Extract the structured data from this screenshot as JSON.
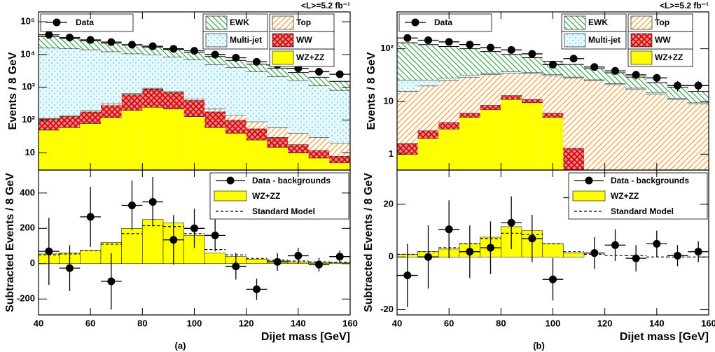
{
  "chart_data": [
    {
      "type": "stacked_histogram",
      "log": true,
      "lumi": "<L>=5.2 fb⁻¹",
      "ylabel": "Events / 8 GeV",
      "bins": [
        40,
        48,
        56,
        64,
        72,
        80,
        88,
        96,
        104,
        112,
        120,
        128,
        136,
        144,
        152,
        160
      ],
      "xlim": [
        40,
        160
      ],
      "xticks": [
        40,
        60,
        80,
        100,
        120,
        140,
        160
      ],
      "ylim": [
        3,
        200000
      ],
      "yticks": [
        10,
        {
          "value": 100,
          "label": "10²"
        },
        {
          "value": 1000,
          "label": "10³"
        },
        {
          "value": 10000,
          "label": "10⁴"
        },
        {
          "value": 100000,
          "label": "10⁵"
        }
      ],
      "series": [
        {
          "name": "WZ+ZZ",
          "color": "#ffff00",
          "pattern": "solid",
          "values": [
            50,
            60,
            80,
            120,
            200,
            250,
            220,
            130,
            60,
            40,
            25,
            15,
            10,
            7,
            5
          ]
        },
        {
          "name": "WW",
          "color": "#cc0000",
          "pattern": "crosshatch",
          "values": [
            60,
            70,
            100,
            160,
            400,
            650,
            480,
            270,
            120,
            60,
            30,
            15,
            8,
            5,
            3
          ]
        },
        {
          "name": "Top",
          "color": "#ff8c1a",
          "pattern": "hatch-up",
          "values": [
            5,
            10,
            20,
            40,
            50,
            50,
            50,
            50,
            40,
            40,
            35,
            30,
            22,
            18,
            12
          ]
        },
        {
          "name": "Multi-jet",
          "color": "#55c8e8",
          "pattern": "dots",
          "values": [
            16000,
            15000,
            14000,
            12000,
            10000,
            9000,
            7800,
            6500,
            4800,
            3900,
            2900,
            2100,
            1600,
            1100,
            800
          ]
        },
        {
          "name": "EWK",
          "color": "#1a9e3a",
          "pattern": "hatch-down",
          "values": [
            19000,
            15000,
            12000,
            10000,
            9000,
            7000,
            5700,
            4500,
            3700,
            2600,
            2100,
            1700,
            1200,
            900,
            700
          ]
        }
      ],
      "data": {
        "name": "Data",
        "values": [
          40000,
          33000,
          28000,
          24000,
          20000,
          18000,
          15000,
          13000,
          10000,
          8000,
          6000,
          4800,
          3800,
          3000,
          2500
        ]
      }
    },
    {
      "type": "subtracted",
      "panel": "(a)",
      "ylabel": "Subtracted Events / 8 GeV",
      "xlabel": "Dijet mass [GeV]",
      "bins": [
        40,
        48,
        56,
        64,
        72,
        80,
        88,
        96,
        104,
        112,
        120,
        128,
        136,
        144,
        152,
        160
      ],
      "xlim": [
        40,
        160
      ],
      "xticks": [
        40,
        60,
        80,
        100,
        120,
        140,
        160
      ],
      "ylim": [
        -290,
        530
      ],
      "yticks": [
        -200,
        0,
        200,
        400
      ],
      "data": {
        "name": "Data - backgrounds",
        "values": [
          70,
          -25,
          265,
          -100,
          330,
          350,
          135,
          200,
          160,
          -15,
          -145,
          10,
          45,
          -5,
          40
        ],
        "errors": [
          190,
          130,
          170,
          160,
          140,
          140,
          140,
          110,
          90,
          75,
          60,
          50,
          45,
          40,
          35
        ]
      },
      "signal": {
        "name": "WZ+ZZ",
        "color": "#ffff00",
        "values": [
          55,
          60,
          75,
          120,
          200,
          250,
          230,
          160,
          60,
          40,
          25,
          15,
          10,
          7,
          5
        ]
      },
      "model": {
        "name": "Standard Model",
        "values": [
          50,
          55,
          75,
          110,
          170,
          215,
          210,
          170,
          80,
          50,
          30,
          20,
          15,
          10,
          8
        ]
      }
    },
    {
      "type": "stacked_histogram",
      "log": true,
      "lumi": "<L>=5.2 fb⁻¹",
      "ylabel": "Events / 8 GeV",
      "bins": [
        40,
        48,
        56,
        64,
        72,
        80,
        88,
        96,
        104,
        112,
        120,
        128,
        136,
        144,
        152,
        160
      ],
      "xlim": [
        40,
        160
      ],
      "xticks": [
        40,
        60,
        80,
        100,
        120,
        140,
        160
      ],
      "ylim": [
        0.5,
        500
      ],
      "yticks": [
        1,
        10,
        {
          "value": 100,
          "label": "10²"
        }
      ],
      "series": [
        {
          "name": "WZ+ZZ",
          "color": "#ffff00",
          "pattern": "solid",
          "values": [
            1,
            2,
            3,
            5,
            7,
            11,
            9.5,
            5,
            0,
            0,
            0,
            0,
            0,
            0,
            0
          ]
        },
        {
          "name": "WW",
          "color": "#cc0000",
          "pattern": "crosshatch",
          "values": [
            0.6,
            0.8,
            1,
            1,
            1.5,
            2,
            1.5,
            1,
            1.3,
            0,
            0,
            0,
            0,
            0,
            0
          ]
        },
        {
          "name": "Top",
          "color": "#ff8c1a",
          "pattern": "hatch-up",
          "values": [
            14,
            17,
            21,
            23,
            24,
            22,
            23,
            25,
            27,
            25,
            21,
            17,
            14,
            11,
            9
          ]
        },
        {
          "name": "Multi-jet",
          "color": "#55c8e8",
          "pattern": "dots",
          "values": [
            10,
            6,
            3,
            3,
            2,
            2,
            1.5,
            1.5,
            1,
            1,
            1,
            1,
            0.8,
            0.6,
            0.5
          ]
        },
        {
          "name": "EWK",
          "color": "#1a9e3a",
          "pattern": "hatch-down",
          "values": [
            104,
            94,
            82,
            68,
            54,
            41,
            32,
            25,
            21,
            16,
            13,
            11,
            8,
            7,
            6
          ]
        }
      ],
      "data": {
        "name": "Data",
        "values": [
          160,
          145,
          135,
          120,
          105,
          95,
          80,
          50,
          65,
          45,
          38,
          32,
          28,
          20,
          20
        ],
        "errors": [
          13,
          12,
          12,
          11,
          10,
          10,
          9,
          7,
          8,
          7,
          6,
          6,
          5,
          4.5,
          4.5
        ]
      }
    },
    {
      "type": "subtracted",
      "panel": "(b)",
      "ylabel": "Subtracted Events / 8 GeV",
      "xlabel": "Dijet mass [GeV]",
      "bins": [
        40,
        48,
        56,
        64,
        72,
        80,
        88,
        96,
        104,
        112,
        120,
        128,
        136,
        144,
        152,
        160
      ],
      "xlim": [
        40,
        160
      ],
      "xticks": [
        40,
        60,
        80,
        100,
        120,
        140,
        160
      ],
      "ylim": [
        -22,
        33
      ],
      "yticks": [
        -20,
        0,
        20
      ],
      "data": {
        "name": "Data - backgrounds",
        "values": [
          -7,
          0,
          10.5,
          2,
          3.5,
          13,
          7,
          -8.5,
          22.5,
          1.5,
          4.5,
          -0.5,
          5,
          0.5,
          2
        ],
        "errors": [
          12,
          12,
          11,
          10,
          10,
          10,
          9,
          8,
          7,
          6,
          6,
          5,
          5,
          4,
          4
        ]
      },
      "signal": {
        "name": "WZ+ZZ",
        "color": "#ffff00",
        "values": [
          1,
          2,
          3,
          5,
          7.5,
          11.5,
          10,
          5,
          1.5,
          0,
          0,
          0,
          0,
          0,
          0
        ]
      },
      "model": {
        "name": "Standard Model",
        "values": [
          1,
          2,
          3.5,
          5,
          7,
          9,
          8.5,
          5,
          2,
          1,
          0.5,
          0.5,
          0,
          0,
          0
        ]
      }
    }
  ]
}
